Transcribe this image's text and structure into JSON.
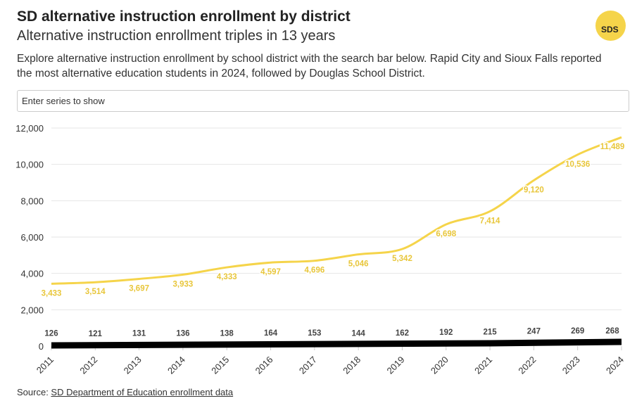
{
  "header": {
    "title": "SD alternative instruction enrollment by district",
    "subtitle": "Alternative instruction enrollment triples in 13 years",
    "description": "Explore alternative instruction enrollment by school district with the search bar below. Rapid City and Sioux Falls reported the most alternative education students in 2024, followed by Douglas School District.",
    "logo_text": "SDS"
  },
  "search": {
    "placeholder": "Enter series to show"
  },
  "source": {
    "label": "Source: ",
    "link": "SD Department of Education enrollment data"
  },
  "chart_data": {
    "type": "line",
    "x": [
      2011,
      2012,
      2013,
      2014,
      2015,
      2016,
      2017,
      2018,
      2019,
      2020,
      2021,
      2022,
      2023,
      2024
    ],
    "ylim": [
      0,
      12000
    ],
    "yticks": [
      0,
      2000,
      4000,
      6000,
      8000,
      10000,
      12000
    ],
    "ytick_labels": [
      "0",
      "2,000",
      "4,000",
      "6,000",
      "8,000",
      "10,000",
      "12,000"
    ],
    "grid": true,
    "series": [
      {
        "color": "#f5d44a",
        "values": [
          3433,
          3514,
          3697,
          3933,
          4333,
          4597,
          4696,
          5046,
          5342,
          6698,
          7414,
          9120,
          10536,
          11489
        ],
        "labels": [
          "3,433",
          "3,514",
          "3,697",
          "3,933",
          "4,333",
          "4,597",
          "4,696",
          "5,046",
          "5,342",
          "6,698",
          "7,414",
          "9,120",
          "10,536",
          "11,489"
        ]
      },
      {
        "color": "#000000",
        "values": [
          126,
          121,
          131,
          136,
          138,
          164,
          153,
          144,
          162,
          192,
          215,
          247,
          269,
          268
        ],
        "labels": [
          "126",
          "121",
          "131",
          "136",
          "138",
          "164",
          "153",
          "144",
          "162",
          "192",
          "215",
          "247",
          "269",
          "268"
        ]
      }
    ]
  }
}
